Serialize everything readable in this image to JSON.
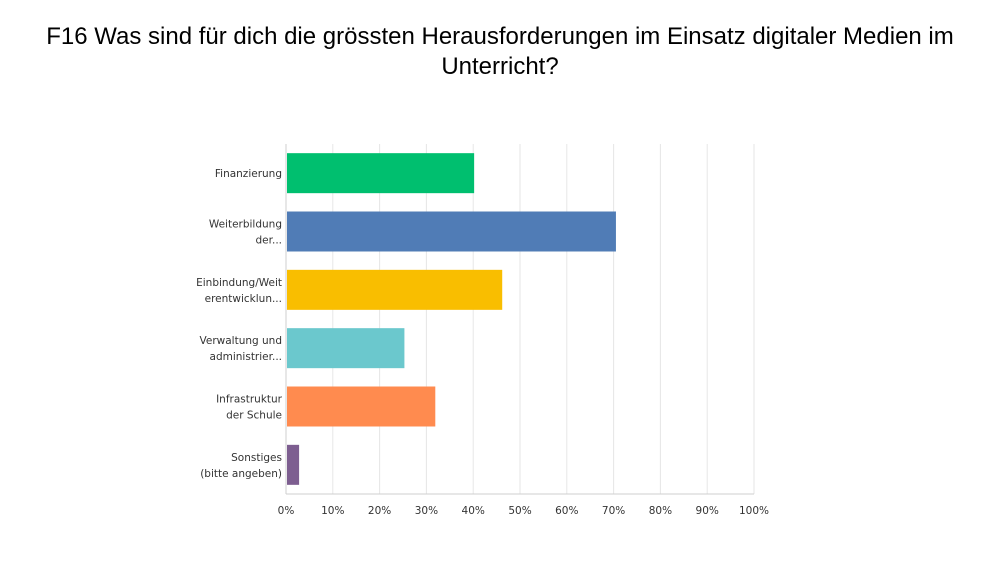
{
  "chart_data": {
    "type": "bar",
    "orientation": "horizontal",
    "title": "F16 Was sind für dich die grössten Herausforderungen im Einsatz digitaler Medien im Unterricht?",
    "categories": [
      [
        "Finanzierung"
      ],
      [
        "Weiterbildung",
        "der..."
      ],
      [
        "Einbindung/Weit",
        "erentwicklun..."
      ],
      [
        "Verwaltung und",
        "administrier..."
      ],
      [
        "Infrastruktur",
        "der Schule"
      ],
      [
        "Sonstiges",
        "(bitte angeben)"
      ]
    ],
    "values": [
      40.2,
      70.5,
      46.2,
      25.3,
      31.9,
      2.8
    ],
    "colors": [
      "#00bf6f",
      "#507cb6",
      "#f9be00",
      "#6bc8cd",
      "#ff8b4f",
      "#7d5e90"
    ],
    "xlim": [
      0,
      100
    ],
    "xticks": [
      "0%",
      "10%",
      "20%",
      "30%",
      "40%",
      "50%",
      "60%",
      "70%",
      "80%",
      "90%",
      "100%"
    ],
    "grid": true,
    "xlabel": "",
    "ylabel": ""
  }
}
